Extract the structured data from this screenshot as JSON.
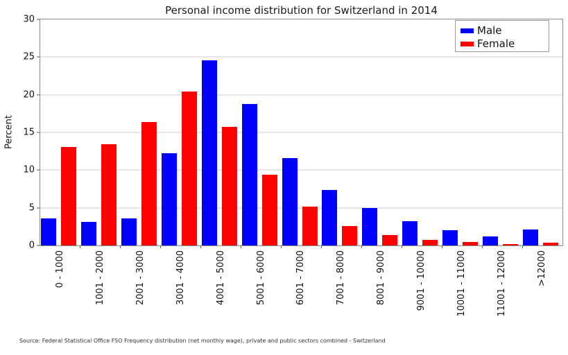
{
  "chart_data": {
    "type": "bar",
    "title": "Personal income distribution for Switzerland in 2014",
    "xlabel": "",
    "ylabel": "Percent",
    "source": "Source: Federal Statistical Office FSO Frequency distribution (net monthly wage), private and public sectors combined - Switzerland",
    "categories": [
      "0 - 1000",
      "1001 - 2000",
      "2001 - 3000",
      "3001 - 4000",
      "4001 - 5000",
      "5001 - 6000",
      "6001 - 7000",
      "7001 - 8000",
      "8001 - 9000",
      "9001 - 10000",
      "10001 - 11000",
      "11001 - 12000",
      ">12000"
    ],
    "series": [
      {
        "name": "Male",
        "color": "#0000ff",
        "values": [
          3.6,
          3.1,
          3.6,
          12.2,
          24.6,
          18.8,
          11.6,
          7.4,
          5.0,
          3.2,
          2.0,
          1.2,
          2.1
        ]
      },
      {
        "name": "Female",
        "color": "#ff0000",
        "values": [
          13.1,
          13.4,
          16.4,
          20.4,
          15.7,
          9.4,
          5.2,
          2.6,
          1.4,
          0.7,
          0.5,
          0.2,
          0.4
        ]
      }
    ],
    "ylim": [
      0,
      30
    ],
    "yticks": [
      0,
      5,
      10,
      15,
      20,
      25,
      30
    ],
    "grid": true,
    "legend_position": "upper-right",
    "xtick_rotation": 90
  }
}
